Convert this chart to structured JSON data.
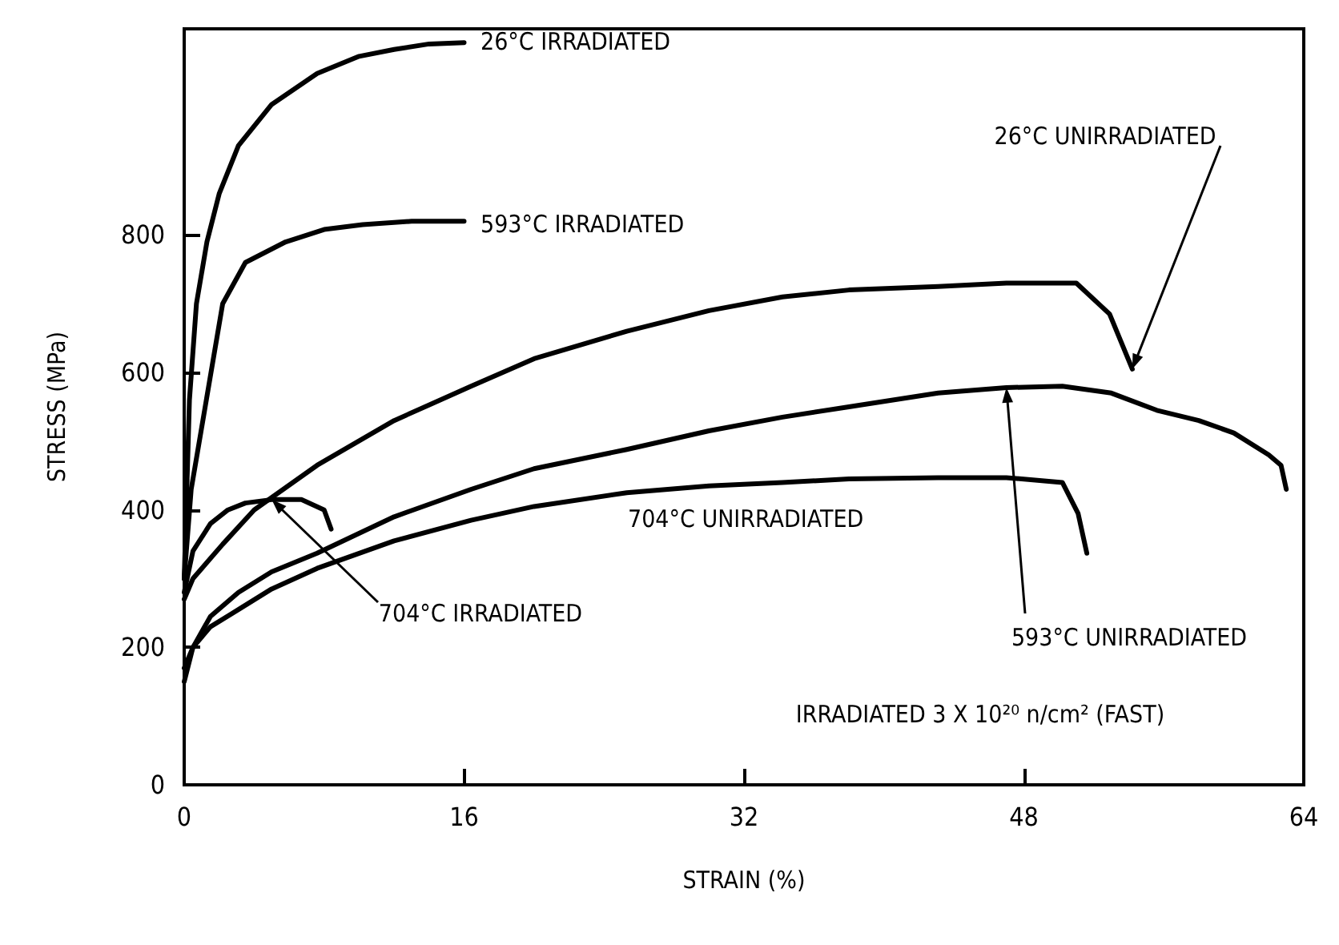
{
  "chart_data": {
    "type": "line",
    "xlabel": "STRAIN (%)",
    "ylabel": "STRESS (MPa)",
    "xlim": [
      0,
      64
    ],
    "xticks": [
      0,
      16,
      32,
      48,
      64
    ],
    "ylim": [
      0,
      1100
    ],
    "yticks": [
      0,
      200,
      400,
      600,
      800
    ],
    "grid": false,
    "marker": "none",
    "line_style": "solid",
    "series": [
      {
        "color": "#000000",
        "x": [
          0,
          0.3,
          0.7,
          1.3,
          2,
          3.1,
          5,
          7.6,
          10,
          12,
          14,
          16
        ],
        "values": [
          300,
          560,
          700,
          790,
          860,
          930,
          990,
          1035,
          1060,
          1070,
          1078,
          1080
        ]
      },
      {
        "color": "#000000",
        "x": [
          0,
          0.4,
          1,
          2.2,
          3.5,
          5.8,
          8,
          10.2,
          13,
          16
        ],
        "values": [
          300,
          430,
          520,
          700,
          760,
          790,
          808,
          815,
          820,
          820
        ]
      },
      {
        "color": "#000000",
        "x": [
          0,
          0.5,
          2.2,
          4,
          7.6,
          12,
          16.4,
          20,
          25.3,
          30,
          34.2,
          38,
          43.1,
          47,
          51,
          52.9,
          54.2
        ],
        "values": [
          270,
          300,
          350,
          400,
          465,
          530,
          580,
          620,
          660,
          690,
          710,
          720,
          725,
          730,
          730,
          685,
          605
        ]
      },
      {
        "color": "#000000",
        "x": [
          0,
          0.5,
          1.5,
          2.5,
          3.5,
          5,
          6.7,
          8,
          8.4
        ],
        "values": [
          280,
          340,
          380,
          400,
          410,
          415,
          415,
          400,
          372
        ]
      },
      {
        "color": "#000000",
        "x": [
          0,
          0.5,
          1.5,
          3.1,
          5,
          7.6,
          12,
          16.4,
          20,
          25.3,
          30,
          34.2,
          38,
          43.1,
          47,
          50.2,
          53,
          55.6,
          58,
          60,
          62,
          62.7,
          63
        ],
        "values": [
          150,
          200,
          245,
          280,
          310,
          337,
          390,
          430,
          460,
          488,
          515,
          535,
          550,
          570,
          578,
          580,
          570,
          545,
          530,
          512,
          480,
          465,
          430
        ]
      },
      {
        "color": "#000000",
        "x": [
          0,
          0.5,
          1.5,
          3.1,
          5,
          7.6,
          12,
          16.4,
          20,
          25.3,
          30,
          34.2,
          38,
          43.1,
          47,
          50.2,
          51.1,
          51.6
        ],
        "values": [
          170,
          200,
          230,
          255,
          285,
          315,
          355,
          385,
          405,
          425,
          435,
          440,
          445,
          447,
          447,
          440,
          395,
          337
        ]
      }
    ],
    "annotations": [
      "26°C IRRADIATED",
      "593°C IRRADIATED",
      {
        "text": "26°C UNIRRADIATED",
        "x": 54.2,
        "y": 605
      },
      "704°C UNIRRADIATED",
      {
        "text": "704°C IRRADIATED",
        "x": 5,
        "y": 415
      },
      {
        "text": "593°C UNIRRADIATED",
        "x": 47,
        "y": 578
      },
      "IRRADIATED 3 X 10²⁰ n/cm² (FAST)"
    ]
  }
}
